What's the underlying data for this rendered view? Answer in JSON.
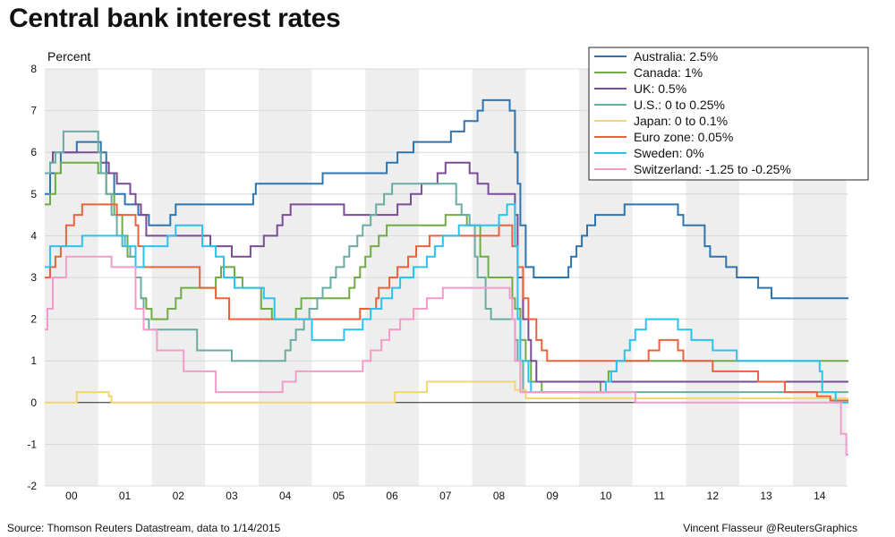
{
  "title": "Central bank interest rates",
  "source": "Source: Thomson Reuters Datastream, data to 1/14/2015",
  "credit": "Vincent Flasseur @ReutersGraphics",
  "chart_data": {
    "type": "line",
    "step": true,
    "ylabel": "Percent",
    "ylim": [
      -2,
      8
    ],
    "yticks": [
      -2,
      -1,
      0,
      1,
      2,
      3,
      4,
      5,
      6,
      7,
      8
    ],
    "xlim": [
      2000,
      2015.04
    ],
    "xtick_labels": [
      "00",
      "01",
      "02",
      "03",
      "04",
      "05",
      "06",
      "07",
      "08",
      "09",
      "10",
      "11",
      "12",
      "13",
      "14"
    ],
    "grid": true,
    "legend_position": "top-right",
    "series": [
      {
        "name": "Australia",
        "legend": "Australia: 2.5%",
        "color": "#2e75b0",
        "points": [
          [
            2000.0,
            5.0
          ],
          [
            2000.1,
            5.5
          ],
          [
            2000.3,
            6.0
          ],
          [
            2000.6,
            6.25
          ],
          [
            2001.05,
            6.0
          ],
          [
            2001.15,
            5.5
          ],
          [
            2001.3,
            5.0
          ],
          [
            2001.5,
            4.75
          ],
          [
            2001.75,
            4.5
          ],
          [
            2001.95,
            4.25
          ],
          [
            2002.35,
            4.5
          ],
          [
            2002.45,
            4.75
          ],
          [
            2003.9,
            5.0
          ],
          [
            2003.95,
            5.25
          ],
          [
            2005.2,
            5.5
          ],
          [
            2006.4,
            5.75
          ],
          [
            2006.6,
            6.0
          ],
          [
            2006.9,
            6.25
          ],
          [
            2007.6,
            6.5
          ],
          [
            2007.85,
            6.75
          ],
          [
            2008.1,
            7.0
          ],
          [
            2008.2,
            7.25
          ],
          [
            2008.7,
            7.0
          ],
          [
            2008.8,
            6.0
          ],
          [
            2008.85,
            5.25
          ],
          [
            2008.9,
            4.25
          ],
          [
            2009.0,
            3.25
          ],
          [
            2009.15,
            3.0
          ],
          [
            2009.8,
            3.25
          ],
          [
            2009.85,
            3.5
          ],
          [
            2009.95,
            3.75
          ],
          [
            2010.05,
            4.0
          ],
          [
            2010.15,
            4.25
          ],
          [
            2010.3,
            4.5
          ],
          [
            2010.85,
            4.75
          ],
          [
            2011.85,
            4.5
          ],
          [
            2011.95,
            4.25
          ],
          [
            2012.35,
            3.75
          ],
          [
            2012.45,
            3.5
          ],
          [
            2012.75,
            3.25
          ],
          [
            2012.95,
            3.0
          ],
          [
            2013.35,
            2.75
          ],
          [
            2013.6,
            2.5
          ],
          [
            2015.04,
            2.5
          ]
        ]
      },
      {
        "name": "Canada",
        "legend": "Canada: 1%",
        "color": "#6fac46",
        "points": [
          [
            2000.0,
            4.75
          ],
          [
            2000.1,
            5.0
          ],
          [
            2000.2,
            5.5
          ],
          [
            2000.3,
            5.75
          ],
          [
            2001.0,
            5.5
          ],
          [
            2001.15,
            5.0
          ],
          [
            2001.3,
            4.5
          ],
          [
            2001.45,
            4.0
          ],
          [
            2001.55,
            3.5
          ],
          [
            2001.7,
            3.0
          ],
          [
            2001.8,
            2.5
          ],
          [
            2001.9,
            2.25
          ],
          [
            2002.0,
            2.0
          ],
          [
            2002.3,
            2.25
          ],
          [
            2002.45,
            2.5
          ],
          [
            2002.55,
            2.75
          ],
          [
            2003.2,
            3.0
          ],
          [
            2003.3,
            3.25
          ],
          [
            2003.55,
            3.0
          ],
          [
            2003.7,
            2.75
          ],
          [
            2004.05,
            2.25
          ],
          [
            2004.25,
            2.0
          ],
          [
            2004.7,
            2.25
          ],
          [
            2004.8,
            2.5
          ],
          [
            2005.7,
            2.75
          ],
          [
            2005.8,
            3.0
          ],
          [
            2005.9,
            3.25
          ],
          [
            2006.0,
            3.5
          ],
          [
            2006.1,
            3.75
          ],
          [
            2006.25,
            4.0
          ],
          [
            2006.4,
            4.25
          ],
          [
            2007.5,
            4.5
          ],
          [
            2007.9,
            4.25
          ],
          [
            2008.15,
            3.5
          ],
          [
            2008.3,
            3.0
          ],
          [
            2008.75,
            2.5
          ],
          [
            2008.8,
            2.25
          ],
          [
            2008.9,
            1.5
          ],
          [
            2009.0,
            1.0
          ],
          [
            2009.1,
            0.5
          ],
          [
            2009.3,
            0.25
          ],
          [
            2010.4,
            0.5
          ],
          [
            2010.55,
            0.75
          ],
          [
            2010.7,
            1.0
          ],
          [
            2015.04,
            1.0
          ]
        ]
      },
      {
        "name": "UK",
        "legend": "UK: 0.5%",
        "color": "#7a4c96",
        "points": [
          [
            2000.0,
            5.5
          ],
          [
            2000.1,
            5.75
          ],
          [
            2000.15,
            6.0
          ],
          [
            2001.05,
            5.75
          ],
          [
            2001.2,
            5.5
          ],
          [
            2001.35,
            5.25
          ],
          [
            2001.6,
            5.0
          ],
          [
            2001.7,
            4.75
          ],
          [
            2001.8,
            4.5
          ],
          [
            2001.9,
            4.0
          ],
          [
            2003.1,
            3.75
          ],
          [
            2003.5,
            3.5
          ],
          [
            2003.85,
            3.75
          ],
          [
            2004.1,
            4.0
          ],
          [
            2004.35,
            4.25
          ],
          [
            2004.45,
            4.5
          ],
          [
            2004.6,
            4.75
          ],
          [
            2005.6,
            4.5
          ],
          [
            2006.6,
            4.75
          ],
          [
            2006.85,
            5.0
          ],
          [
            2007.05,
            5.25
          ],
          [
            2007.35,
            5.5
          ],
          [
            2007.5,
            5.75
          ],
          [
            2007.95,
            5.5
          ],
          [
            2008.1,
            5.25
          ],
          [
            2008.3,
            5.0
          ],
          [
            2008.8,
            4.5
          ],
          [
            2008.85,
            3.0
          ],
          [
            2008.95,
            2.0
          ],
          [
            2009.05,
            1.5
          ],
          [
            2009.1,
            1.0
          ],
          [
            2009.2,
            0.5
          ],
          [
            2015.04,
            0.5
          ]
        ]
      },
      {
        "name": "U.S.",
        "legend": "U.S.: 0 to 0.25%",
        "color": "#6aaca3",
        "points": [
          [
            2000.0,
            5.5
          ],
          [
            2000.1,
            5.75
          ],
          [
            2000.2,
            6.0
          ],
          [
            2000.35,
            6.5
          ],
          [
            2001.0,
            6.0
          ],
          [
            2001.05,
            5.5
          ],
          [
            2001.15,
            5.0
          ],
          [
            2001.25,
            4.5
          ],
          [
            2001.35,
            4.0
          ],
          [
            2001.45,
            3.75
          ],
          [
            2001.6,
            3.5
          ],
          [
            2001.7,
            3.0
          ],
          [
            2001.8,
            2.5
          ],
          [
            2001.85,
            2.0
          ],
          [
            2001.95,
            1.75
          ],
          [
            2002.85,
            1.25
          ],
          [
            2003.5,
            1.0
          ],
          [
            2004.5,
            1.25
          ],
          [
            2004.6,
            1.5
          ],
          [
            2004.7,
            1.75
          ],
          [
            2004.85,
            2.0
          ],
          [
            2004.95,
            2.25
          ],
          [
            2005.1,
            2.5
          ],
          [
            2005.2,
            2.75
          ],
          [
            2005.35,
            3.0
          ],
          [
            2005.45,
            3.25
          ],
          [
            2005.6,
            3.5
          ],
          [
            2005.7,
            3.75
          ],
          [
            2005.85,
            4.0
          ],
          [
            2005.95,
            4.25
          ],
          [
            2006.1,
            4.5
          ],
          [
            2006.2,
            4.75
          ],
          [
            2006.35,
            5.0
          ],
          [
            2006.5,
            5.25
          ],
          [
            2007.7,
            4.75
          ],
          [
            2007.8,
            4.5
          ],
          [
            2007.95,
            4.25
          ],
          [
            2008.05,
            3.5
          ],
          [
            2008.1,
            3.0
          ],
          [
            2008.25,
            2.25
          ],
          [
            2008.35,
            2.0
          ],
          [
            2008.8,
            1.5
          ],
          [
            2008.85,
            1.0
          ],
          [
            2008.95,
            0.25
          ],
          [
            2015.04,
            0.25
          ]
        ]
      },
      {
        "name": "Japan",
        "legend": "Japan: 0 to 0.1%",
        "color": "#f2d66f",
        "points": [
          [
            2000.0,
            0.0
          ],
          [
            2000.6,
            0.25
          ],
          [
            2001.2,
            0.15
          ],
          [
            2001.25,
            0.0
          ],
          [
            2006.05,
            0.0
          ],
          [
            2006.55,
            0.25
          ],
          [
            2007.15,
            0.5
          ],
          [
            2008.8,
            0.3
          ],
          [
            2009.0,
            0.1
          ],
          [
            2015.04,
            0.1
          ]
        ]
      },
      {
        "name": "Euro zone",
        "legend": "Euro zone: 0.05%",
        "color": "#e8633d",
        "points": [
          [
            2000.0,
            3.0
          ],
          [
            2000.1,
            3.25
          ],
          [
            2000.2,
            3.5
          ],
          [
            2000.3,
            3.75
          ],
          [
            2000.4,
            4.25
          ],
          [
            2000.55,
            4.5
          ],
          [
            2000.7,
            4.75
          ],
          [
            2001.35,
            4.5
          ],
          [
            2001.7,
            4.25
          ],
          [
            2001.75,
            3.75
          ],
          [
            2001.85,
            3.25
          ],
          [
            2002.9,
            2.75
          ],
          [
            2003.2,
            2.5
          ],
          [
            2003.45,
            2.0
          ],
          [
            2005.9,
            2.25
          ],
          [
            2006.2,
            2.5
          ],
          [
            2006.25,
            2.75
          ],
          [
            2006.45,
            3.0
          ],
          [
            2006.6,
            3.25
          ],
          [
            2006.8,
            3.5
          ],
          [
            2006.95,
            3.75
          ],
          [
            2007.2,
            4.0
          ],
          [
            2008.5,
            4.25
          ],
          [
            2008.75,
            3.75
          ],
          [
            2008.85,
            3.25
          ],
          [
            2008.95,
            2.5
          ],
          [
            2009.05,
            2.0
          ],
          [
            2009.2,
            1.5
          ],
          [
            2009.3,
            1.25
          ],
          [
            2009.4,
            1.0
          ],
          [
            2011.3,
            1.25
          ],
          [
            2011.5,
            1.5
          ],
          [
            2011.85,
            1.25
          ],
          [
            2011.95,
            1.0
          ],
          [
            2012.5,
            0.75
          ],
          [
            2013.35,
            0.5
          ],
          [
            2013.85,
            0.25
          ],
          [
            2014.45,
            0.15
          ],
          [
            2014.7,
            0.05
          ],
          [
            2015.04,
            0.05
          ]
        ]
      },
      {
        "name": "Sweden",
        "legend": "Sweden: 0%",
        "color": "#2bc2ee",
        "points": [
          [
            2000.0,
            3.25
          ],
          [
            2000.1,
            3.75
          ],
          [
            2000.7,
            4.0
          ],
          [
            2001.5,
            3.75
          ],
          [
            2001.7,
            3.25
          ],
          [
            2001.85,
            3.75
          ],
          [
            2002.3,
            4.0
          ],
          [
            2002.45,
            4.25
          ],
          [
            2002.95,
            3.75
          ],
          [
            2003.2,
            3.5
          ],
          [
            2003.35,
            3.0
          ],
          [
            2003.55,
            2.75
          ],
          [
            2004.1,
            2.5
          ],
          [
            2004.3,
            2.0
          ],
          [
            2005.0,
            1.5
          ],
          [
            2005.6,
            1.75
          ],
          [
            2005.95,
            2.0
          ],
          [
            2006.1,
            2.25
          ],
          [
            2006.3,
            2.5
          ],
          [
            2006.5,
            2.75
          ],
          [
            2006.65,
            3.0
          ],
          [
            2006.9,
            3.25
          ],
          [
            2007.15,
            3.5
          ],
          [
            2007.3,
            3.75
          ],
          [
            2007.45,
            4.0
          ],
          [
            2007.75,
            4.25
          ],
          [
            2008.5,
            4.5
          ],
          [
            2008.65,
            4.75
          ],
          [
            2008.8,
            3.75
          ],
          [
            2008.85,
            2.0
          ],
          [
            2008.9,
            1.0
          ],
          [
            2009.05,
            0.5
          ],
          [
            2009.1,
            0.25
          ],
          [
            2010.5,
            0.5
          ],
          [
            2010.6,
            0.75
          ],
          [
            2010.7,
            1.0
          ],
          [
            2010.85,
            1.25
          ],
          [
            2010.95,
            1.5
          ],
          [
            2011.05,
            1.75
          ],
          [
            2011.25,
            2.0
          ],
          [
            2011.85,
            1.75
          ],
          [
            2012.1,
            1.5
          ],
          [
            2012.5,
            1.25
          ],
          [
            2012.95,
            1.0
          ],
          [
            2014.5,
            0.75
          ],
          [
            2014.55,
            0.25
          ],
          [
            2014.8,
            0.0
          ],
          [
            2015.04,
            0.0
          ]
        ]
      },
      {
        "name": "Switzerland",
        "legend": "Switzerland: -1.25 to -0.25%",
        "color": "#f29bca",
        "points": [
          [
            2000.0,
            1.75
          ],
          [
            2000.05,
            2.25
          ],
          [
            2000.15,
            3.0
          ],
          [
            2000.4,
            3.5
          ],
          [
            2001.25,
            3.25
          ],
          [
            2001.7,
            2.25
          ],
          [
            2001.85,
            1.75
          ],
          [
            2002.1,
            1.25
          ],
          [
            2002.6,
            0.75
          ],
          [
            2003.2,
            0.25
          ],
          [
            2004.45,
            0.5
          ],
          [
            2004.7,
            0.75
          ],
          [
            2005.95,
            1.0
          ],
          [
            2006.1,
            1.25
          ],
          [
            2006.3,
            1.5
          ],
          [
            2006.45,
            1.75
          ],
          [
            2006.65,
            2.0
          ],
          [
            2006.9,
            2.25
          ],
          [
            2007.15,
            2.5
          ],
          [
            2007.45,
            2.75
          ],
          [
            2008.7,
            2.5
          ],
          [
            2008.75,
            2.0
          ],
          [
            2008.8,
            1.0
          ],
          [
            2008.9,
            0.25
          ],
          [
            2011.05,
            0.0
          ],
          [
            2014.9,
            -0.75
          ],
          [
            2015.0,
            -1.25
          ],
          [
            2015.04,
            -1.25
          ]
        ]
      }
    ]
  }
}
